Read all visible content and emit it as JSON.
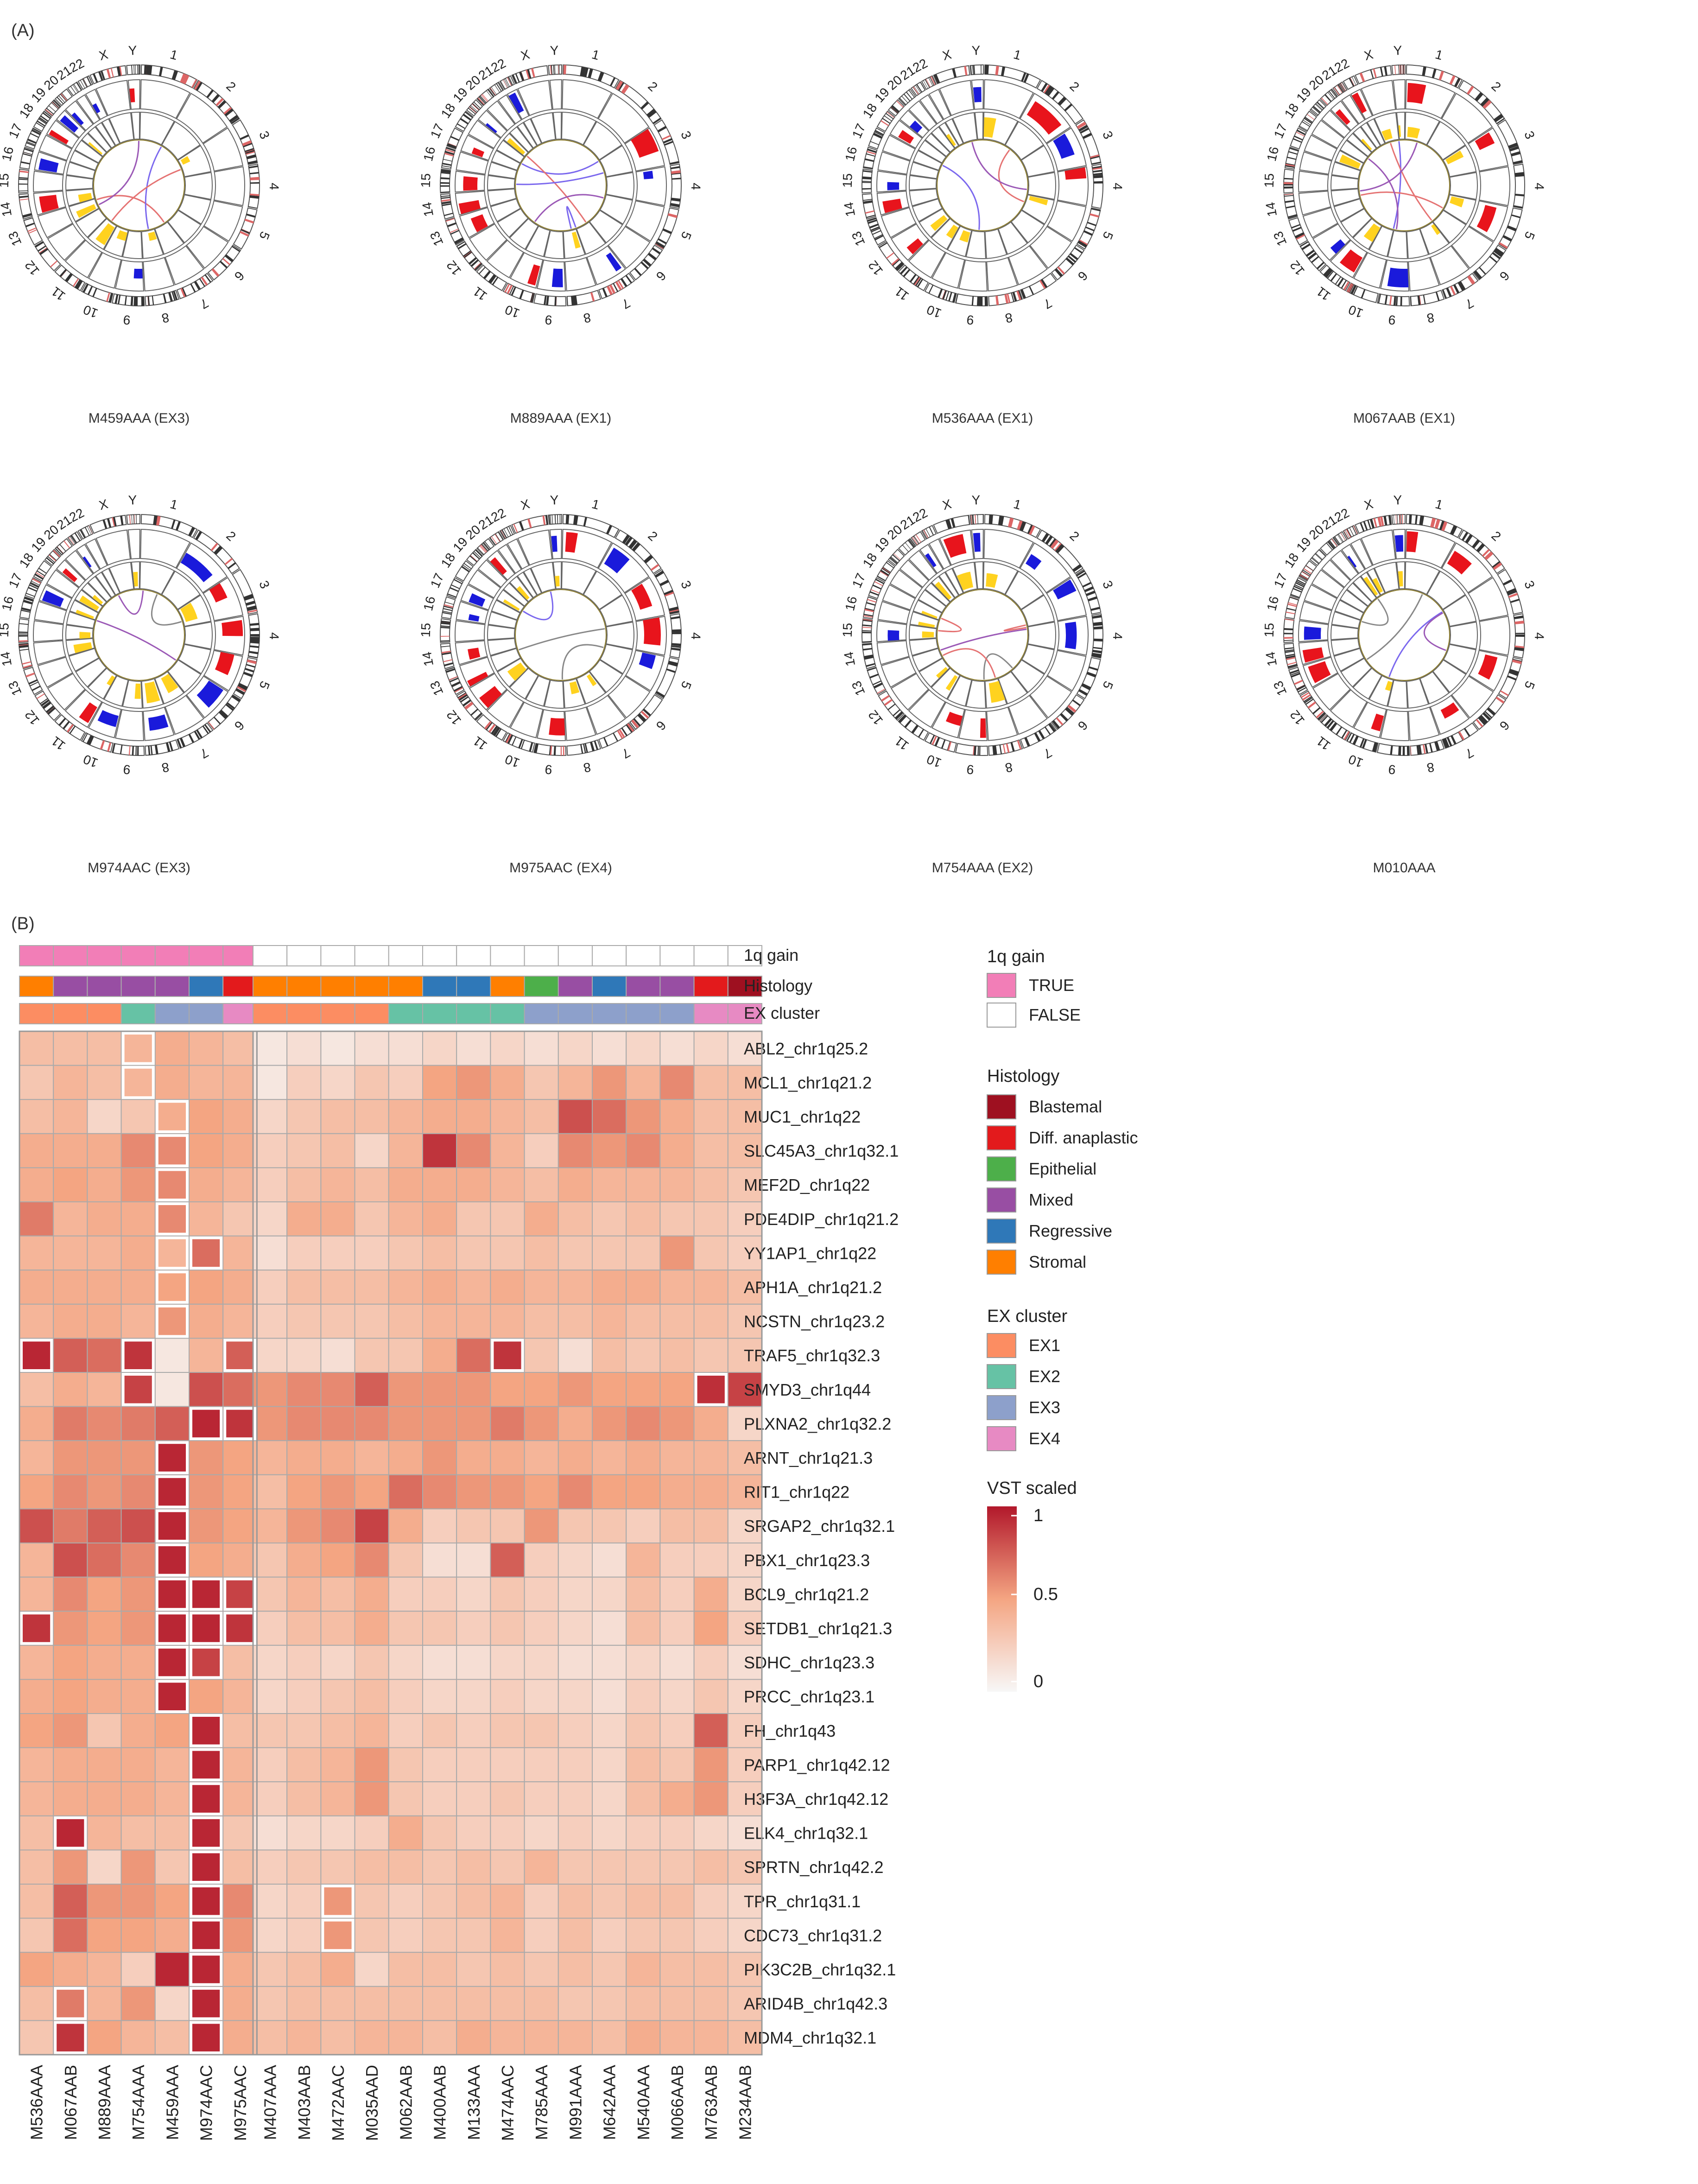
{
  "panel_a_label": "(A)",
  "panel_b_label": "(B)",
  "chromosome_labels": [
    "1",
    "2",
    "3",
    "4",
    "5",
    "6",
    "7",
    "8",
    "9",
    "10",
    "11",
    "12",
    "13",
    "14",
    "15",
    "16",
    "17",
    "18",
    "19",
    "20",
    "21",
    "22",
    "X",
    "Y"
  ],
  "circos_plots": [
    {
      "caption": "M459AAA (EX3)"
    },
    {
      "caption": "M889AAA (EX1)"
    },
    {
      "caption": "M536AAA (EX1)"
    },
    {
      "caption": "M067AAB (EX1)"
    },
    {
      "caption": "M974AAC (EX3)"
    },
    {
      "caption": "M975AAC (EX4)"
    },
    {
      "caption": "M754AAA (EX2)"
    },
    {
      "caption": "M010AAA"
    }
  ],
  "colors": {
    "gain_red": "#e8141c",
    "loss_blue": "#1a1adb",
    "yellow": "#ffd21f",
    "low": "#f7f7f7",
    "mid": "#f4a582",
    "high": "#b2182b",
    "true_pink": "#f27eb7"
  },
  "chart_data": {
    "type": "heatmap",
    "annotation_track_labels": [
      "1q gain",
      "Histology",
      "EX cluster"
    ],
    "samples_left": [
      "M536AAA",
      "M067AAB",
      "M889AAA",
      "M754AAA",
      "M459AAA",
      "M974AAC",
      "M975AAC"
    ],
    "samples_right": [
      "M407AAA",
      "M403AAB",
      "M472AAC",
      "M035AAD",
      "M062AAB",
      "M400AAB",
      "M133AAA",
      "M474AAC",
      "M785AAA",
      "M991AAA",
      "M642AAA",
      "M540AAA",
      "M066AAB",
      "M763AAB",
      "M234AAB"
    ],
    "annotations": {
      "gain_1q": [
        true,
        true,
        true,
        true,
        true,
        true,
        true,
        false,
        false,
        false,
        false,
        false,
        false,
        false,
        false,
        false,
        false,
        false,
        false,
        false,
        false,
        false
      ],
      "histology": [
        "Stromal",
        "Mixed",
        "Mixed",
        "Mixed",
        "Mixed",
        "Regressive",
        "Diff. anaplastic",
        "Stromal",
        "Stromal",
        "Stromal",
        "Stromal",
        "Stromal",
        "Regressive",
        "Regressive",
        "Stromal",
        "Epithelial",
        "Mixed",
        "Regressive",
        "Mixed",
        "Mixed",
        "Diff. anaplastic",
        "Blastemal"
      ],
      "ex_cluster": [
        "EX1",
        "EX1",
        "EX1",
        "EX2",
        "EX3",
        "EX3",
        "EX4",
        "EX1",
        "EX1",
        "EX1",
        "EX1",
        "EX2",
        "EX2",
        "EX2",
        "EX2",
        "EX3",
        "EX3",
        "EX3",
        "EX3",
        "EX3",
        "EX4",
        "EX4"
      ]
    },
    "genes": [
      "ABL2_chr1q25.2",
      "MCL1_chr1q21.2",
      "MUC1_chr1q22",
      "SLC45A3_chr1q32.1",
      "MEF2D_chr1q22",
      "PDE4DIP_chr1q21.2",
      "YY1AP1_chr1q22",
      "APH1A_chr1q21.2",
      "NCSTN_chr1q23.2",
      "TRAF5_chr1q32.3",
      "SMYD3_chr1q44",
      "PLXNA2_chr1q32.2",
      "ARNT_chr1q21.3",
      "RIT1_chr1q22",
      "SRGAP2_chr1q32.1",
      "PBX1_chr1q23.3",
      "BCL9_chr1q21.2",
      "SETDB1_chr1q21.3",
      "SDHC_chr1q23.3",
      "PRCC_chr1q23.1",
      "FH_chr1q43",
      "PARP1_chr1q42.12",
      "H3F3A_chr1q42.12",
      "ELK4_chr1q32.1",
      "SPRTN_chr1q42.2",
      "TPR_chr1q31.1",
      "CDC73_chr1q31.2",
      "PIK3C2B_chr1q32.1",
      "ARID4B_chr1q42.3",
      "MDM4_chr1q32.1"
    ],
    "values": [
      [
        0.35,
        0.35,
        0.35,
        0.4,
        0.45,
        0.4,
        0.35,
        0.1,
        0.15,
        0.1,
        0.15,
        0.15,
        0.2,
        0.15,
        0.2,
        0.15,
        0.2,
        0.15,
        0.2,
        0.15,
        0.2,
        0.15
      ],
      [
        0.3,
        0.4,
        0.35,
        0.4,
        0.45,
        0.4,
        0.4,
        0.1,
        0.25,
        0.2,
        0.3,
        0.25,
        0.5,
        0.55,
        0.45,
        0.3,
        0.4,
        0.55,
        0.4,
        0.6,
        0.35,
        0.35
      ],
      [
        0.35,
        0.4,
        0.2,
        0.3,
        0.45,
        0.5,
        0.45,
        0.2,
        0.3,
        0.35,
        0.35,
        0.4,
        0.45,
        0.45,
        0.4,
        0.35,
        0.8,
        0.7,
        0.55,
        0.45,
        0.35,
        0.35
      ],
      [
        0.45,
        0.45,
        0.45,
        0.6,
        0.6,
        0.5,
        0.45,
        0.25,
        0.3,
        0.35,
        0.2,
        0.4,
        0.9,
        0.6,
        0.4,
        0.25,
        0.6,
        0.55,
        0.6,
        0.45,
        0.35,
        0.35
      ],
      [
        0.45,
        0.5,
        0.45,
        0.55,
        0.6,
        0.45,
        0.4,
        0.25,
        0.35,
        0.4,
        0.35,
        0.45,
        0.45,
        0.45,
        0.4,
        0.35,
        0.45,
        0.4,
        0.4,
        0.4,
        0.35,
        0.3
      ],
      [
        0.65,
        0.4,
        0.45,
        0.45,
        0.6,
        0.4,
        0.3,
        0.2,
        0.45,
        0.45,
        0.3,
        0.4,
        0.45,
        0.3,
        0.3,
        0.45,
        0.35,
        0.3,
        0.35,
        0.3,
        0.3,
        0.25
      ],
      [
        0.4,
        0.4,
        0.4,
        0.45,
        0.4,
        0.7,
        0.4,
        0.15,
        0.25,
        0.25,
        0.25,
        0.3,
        0.35,
        0.3,
        0.3,
        0.35,
        0.3,
        0.3,
        0.3,
        0.55,
        0.3,
        0.25
      ],
      [
        0.45,
        0.45,
        0.45,
        0.45,
        0.5,
        0.5,
        0.45,
        0.25,
        0.35,
        0.35,
        0.35,
        0.4,
        0.45,
        0.4,
        0.45,
        0.4,
        0.4,
        0.45,
        0.45,
        0.4,
        0.4,
        0.35
      ],
      [
        0.4,
        0.45,
        0.45,
        0.4,
        0.55,
        0.45,
        0.4,
        0.25,
        0.3,
        0.3,
        0.3,
        0.35,
        0.4,
        0.4,
        0.4,
        0.35,
        0.35,
        0.4,
        0.35,
        0.35,
        0.35,
        0.3
      ],
      [
        0.95,
        0.75,
        0.7,
        0.9,
        0.1,
        0.4,
        0.75,
        0.2,
        0.2,
        0.15,
        0.3,
        0.3,
        0.45,
        0.7,
        0.9,
        0.3,
        0.15,
        0.35,
        0.3,
        0.35,
        0.3,
        0.3
      ],
      [
        0.35,
        0.45,
        0.4,
        0.85,
        0.1,
        0.8,
        0.7,
        0.55,
        0.6,
        0.6,
        0.75,
        0.55,
        0.55,
        0.55,
        0.5,
        0.5,
        0.55,
        0.5,
        0.5,
        0.5,
        0.92,
        0.85
      ],
      [
        0.45,
        0.65,
        0.6,
        0.65,
        0.75,
        0.95,
        0.9,
        0.55,
        0.6,
        0.6,
        0.6,
        0.55,
        0.55,
        0.55,
        0.65,
        0.55,
        0.45,
        0.55,
        0.6,
        0.55,
        0.45,
        0.2
      ],
      [
        0.4,
        0.55,
        0.55,
        0.55,
        0.95,
        0.55,
        0.5,
        0.4,
        0.45,
        0.45,
        0.4,
        0.45,
        0.55,
        0.45,
        0.45,
        0.4,
        0.45,
        0.4,
        0.45,
        0.4,
        0.4,
        0.35
      ],
      [
        0.5,
        0.6,
        0.55,
        0.6,
        0.95,
        0.55,
        0.5,
        0.35,
        0.5,
        0.55,
        0.5,
        0.7,
        0.6,
        0.55,
        0.55,
        0.5,
        0.6,
        0.5,
        0.5,
        0.45,
        0.45,
        0.4
      ],
      [
        0.8,
        0.65,
        0.75,
        0.8,
        0.95,
        0.55,
        0.5,
        0.4,
        0.55,
        0.6,
        0.85,
        0.45,
        0.25,
        0.3,
        0.3,
        0.55,
        0.3,
        0.3,
        0.25,
        0.35,
        0.35,
        0.2
      ],
      [
        0.4,
        0.8,
        0.7,
        0.6,
        0.95,
        0.5,
        0.45,
        0.3,
        0.45,
        0.5,
        0.6,
        0.3,
        0.15,
        0.15,
        0.75,
        0.25,
        0.2,
        0.15,
        0.4,
        0.25,
        0.25,
        0.2
      ],
      [
        0.4,
        0.6,
        0.5,
        0.55,
        0.95,
        0.95,
        0.85,
        0.3,
        0.4,
        0.35,
        0.45,
        0.25,
        0.25,
        0.2,
        0.3,
        0.25,
        0.2,
        0.2,
        0.35,
        0.25,
        0.45,
        0.2
      ],
      [
        0.9,
        0.55,
        0.5,
        0.55,
        0.95,
        0.95,
        0.9,
        0.25,
        0.35,
        0.35,
        0.45,
        0.3,
        0.3,
        0.25,
        0.3,
        0.25,
        0.2,
        0.15,
        0.35,
        0.25,
        0.5,
        0.25
      ],
      [
        0.4,
        0.5,
        0.45,
        0.45,
        0.95,
        0.85,
        0.35,
        0.2,
        0.25,
        0.2,
        0.3,
        0.2,
        0.15,
        0.15,
        0.2,
        0.2,
        0.15,
        0.15,
        0.2,
        0.15,
        0.25,
        0.15
      ],
      [
        0.45,
        0.5,
        0.45,
        0.45,
        0.95,
        0.5,
        0.4,
        0.2,
        0.25,
        0.3,
        0.35,
        0.25,
        0.2,
        0.2,
        0.25,
        0.2,
        0.2,
        0.15,
        0.25,
        0.2,
        0.3,
        0.2
      ],
      [
        0.5,
        0.55,
        0.3,
        0.45,
        0.5,
        0.95,
        0.35,
        0.3,
        0.3,
        0.35,
        0.4,
        0.25,
        0.3,
        0.25,
        0.3,
        0.3,
        0.25,
        0.2,
        0.3,
        0.25,
        0.75,
        0.25
      ],
      [
        0.4,
        0.45,
        0.45,
        0.45,
        0.4,
        0.95,
        0.4,
        0.25,
        0.35,
        0.4,
        0.55,
        0.3,
        0.25,
        0.25,
        0.25,
        0.25,
        0.25,
        0.2,
        0.35,
        0.3,
        0.55,
        0.25
      ],
      [
        0.4,
        0.45,
        0.45,
        0.45,
        0.4,
        0.95,
        0.4,
        0.25,
        0.35,
        0.4,
        0.55,
        0.3,
        0.25,
        0.25,
        0.3,
        0.25,
        0.25,
        0.2,
        0.35,
        0.45,
        0.55,
        0.25
      ],
      [
        0.35,
        0.95,
        0.4,
        0.35,
        0.35,
        0.95,
        0.3,
        0.15,
        0.2,
        0.2,
        0.25,
        0.45,
        0.3,
        0.25,
        0.25,
        0.2,
        0.25,
        0.2,
        0.25,
        0.25,
        0.2,
        0.15
      ],
      [
        0.35,
        0.55,
        0.2,
        0.55,
        0.3,
        0.95,
        0.35,
        0.25,
        0.3,
        0.3,
        0.35,
        0.35,
        0.3,
        0.35,
        0.3,
        0.4,
        0.3,
        0.3,
        0.3,
        0.3,
        0.35,
        0.3
      ],
      [
        0.35,
        0.75,
        0.55,
        0.55,
        0.5,
        0.95,
        0.6,
        0.2,
        0.25,
        0.55,
        0.3,
        0.25,
        0.3,
        0.35,
        0.4,
        0.25,
        0.35,
        0.3,
        0.35,
        0.35,
        0.25,
        0.2
      ],
      [
        0.3,
        0.7,
        0.5,
        0.5,
        0.45,
        0.95,
        0.55,
        0.2,
        0.25,
        0.55,
        0.3,
        0.25,
        0.3,
        0.3,
        0.4,
        0.25,
        0.35,
        0.25,
        0.3,
        0.3,
        0.25,
        0.2
      ],
      [
        0.5,
        0.45,
        0.4,
        0.25,
        0.95,
        0.95,
        0.45,
        0.3,
        0.35,
        0.45,
        0.2,
        0.35,
        0.35,
        0.3,
        0.35,
        0.3,
        0.35,
        0.3,
        0.4,
        0.35,
        0.35,
        0.3
      ],
      [
        0.35,
        0.65,
        0.4,
        0.55,
        0.2,
        0.95,
        0.45,
        0.3,
        0.35,
        0.35,
        0.35,
        0.35,
        0.35,
        0.35,
        0.35,
        0.35,
        0.3,
        0.3,
        0.35,
        0.35,
        0.35,
        0.3
      ],
      [
        0.3,
        0.9,
        0.5,
        0.4,
        0.35,
        0.95,
        0.45,
        0.35,
        0.4,
        0.35,
        0.4,
        0.4,
        0.35,
        0.45,
        0.4,
        0.4,
        0.4,
        0.35,
        0.45,
        0.4,
        0.4,
        0.35
      ]
    ],
    "highlighted_cells": [
      [
        0,
        3
      ],
      [
        1,
        3
      ],
      [
        2,
        4
      ],
      [
        3,
        4
      ],
      [
        4,
        4
      ],
      [
        5,
        4
      ],
      [
        6,
        4
      ],
      [
        6,
        5
      ],
      [
        7,
        4
      ],
      [
        8,
        4
      ],
      [
        9,
        0
      ],
      [
        9,
        3
      ],
      [
        9,
        6
      ],
      [
        9,
        14
      ],
      [
        10,
        3
      ],
      [
        10,
        20
      ],
      [
        11,
        5
      ],
      [
        11,
        6
      ],
      [
        12,
        4
      ],
      [
        13,
        4
      ],
      [
        14,
        4
      ],
      [
        15,
        4
      ],
      [
        16,
        4
      ],
      [
        16,
        5
      ],
      [
        16,
        6
      ],
      [
        17,
        0
      ],
      [
        17,
        4
      ],
      [
        17,
        5
      ],
      [
        17,
        6
      ],
      [
        18,
        4
      ],
      [
        18,
        5
      ],
      [
        19,
        4
      ],
      [
        20,
        5
      ],
      [
        21,
        5
      ],
      [
        22,
        5
      ],
      [
        23,
        1
      ],
      [
        23,
        5
      ],
      [
        24,
        5
      ],
      [
        25,
        5
      ],
      [
        25,
        9
      ],
      [
        26,
        5
      ],
      [
        26,
        9
      ],
      [
        27,
        5
      ],
      [
        28,
        1
      ],
      [
        28,
        5
      ],
      [
        29,
        1
      ],
      [
        29,
        5
      ]
    ],
    "legend_1q_gain": {
      "title": "1q gain",
      "items": [
        "TRUE",
        "FALSE"
      ]
    },
    "legend_histology": {
      "title": "Histology",
      "items": [
        "Blastemal",
        "Diff. anaplastic",
        "Epithelial",
        "Mixed",
        "Regressive",
        "Stromal"
      ],
      "colors": [
        "#9e1020",
        "#e31a1c",
        "#4daf4a",
        "#984ea3",
        "#2f78b8",
        "#ff7f00"
      ]
    },
    "legend_ex_cluster": {
      "title": "EX cluster",
      "items": [
        "EX1",
        "EX2",
        "EX3",
        "EX4"
      ],
      "colors": [
        "#fc8d62",
        "#66c2a5",
        "#8da0cb",
        "#e78ac3"
      ]
    },
    "legend_vst": {
      "title": "VST scaled",
      "ticks": [
        "1",
        "0.5",
        "0"
      ],
      "range": [
        0,
        1
      ]
    }
  }
}
